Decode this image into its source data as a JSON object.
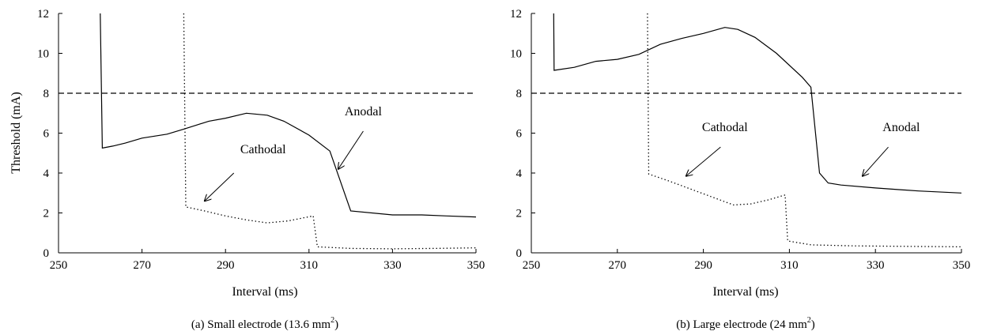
{
  "chart_data": [
    {
      "type": "line",
      "caption": "(a)  Small electrode (13.6 mm",
      "caption_sup": "2",
      "caption_end": ")",
      "xlabel": "Interval (ms)",
      "ylabel": "Threshold (mA)",
      "xlim": [
        250,
        350
      ],
      "ylim": [
        0,
        12
      ],
      "xticks": [
        250,
        270,
        290,
        310,
        330,
        350
      ],
      "yticks": [
        0,
        2,
        4,
        6,
        8,
        10,
        12
      ],
      "grid": false,
      "series": [
        {
          "name": "Anodal",
          "style": "solid",
          "x": [
            260,
            260.5,
            263,
            266,
            270,
            276,
            280,
            283,
            286,
            290,
            295,
            300,
            304,
            310,
            315,
            320,
            330,
            337,
            343,
            350
          ],
          "y": [
            12,
            5.25,
            5.35,
            5.5,
            5.75,
            5.95,
            6.2,
            6.4,
            6.6,
            6.75,
            7.0,
            6.9,
            6.6,
            5.9,
            5.1,
            2.1,
            1.9,
            1.9,
            1.85,
            1.8
          ]
        },
        {
          "name": "Cathodal",
          "style": "dotted",
          "x": [
            280,
            280.5,
            285,
            290,
            295,
            300,
            305,
            311,
            312,
            320,
            330,
            340,
            350
          ],
          "y": [
            12,
            2.3,
            2.1,
            1.85,
            1.65,
            1.5,
            1.6,
            1.85,
            0.3,
            0.22,
            0.2,
            0.22,
            0.25
          ]
        },
        {
          "name": "",
          "style": "dashed",
          "x": [
            250,
            350
          ],
          "y": [
            8,
            8
          ]
        }
      ],
      "annotations": [
        {
          "text": "Anodal",
          "x": 323,
          "y": 6.9,
          "arrow_from": [
            323,
            6.1
          ],
          "arrow_to": [
            317,
            4.2
          ]
        },
        {
          "text": "Cathodal",
          "x": 299,
          "y": 5.0,
          "arrow_from": [
            292,
            4.0
          ],
          "arrow_to": [
            285,
            2.6
          ]
        }
      ]
    },
    {
      "type": "line",
      "caption": "(b)  Large electrode (24 mm",
      "caption_sup": "2",
      "caption_end": ")",
      "xlabel": "Interval (ms)",
      "ylabel": "",
      "xlim": [
        250,
        350
      ],
      "ylim": [
        0,
        12
      ],
      "xticks": [
        250,
        270,
        290,
        310,
        330,
        350
      ],
      "yticks": [
        0,
        2,
        4,
        6,
        8,
        10,
        12
      ],
      "grid": false,
      "series": [
        {
          "name": "Anodal",
          "style": "solid",
          "x": [
            255.2,
            255.3,
            260,
            265,
            270,
            275,
            280,
            285,
            290,
            295,
            298,
            302,
            307,
            313,
            315,
            317,
            319,
            322,
            330,
            340,
            350
          ],
          "y": [
            12,
            9.15,
            9.3,
            9.6,
            9.7,
            9.95,
            10.45,
            10.75,
            11.0,
            11.3,
            11.2,
            10.8,
            10.0,
            8.8,
            8.3,
            4.0,
            3.5,
            3.4,
            3.25,
            3.1,
            3.0
          ]
        },
        {
          "name": "Cathodal",
          "style": "dotted",
          "x": [
            277,
            277.3,
            282,
            287,
            292,
            297,
            301,
            305,
            309,
            309.6,
            315,
            325,
            335,
            350
          ],
          "y": [
            12,
            3.95,
            3.6,
            3.2,
            2.8,
            2.4,
            2.45,
            2.65,
            2.9,
            0.6,
            0.4,
            0.35,
            0.33,
            0.3
          ]
        },
        {
          "name": "",
          "style": "dashed",
          "x": [
            250,
            350
          ],
          "y": [
            8,
            8
          ]
        }
      ],
      "annotations": [
        {
          "text": "Anodal",
          "x": 336,
          "y": 6.1,
          "arrow_from": [
            333,
            5.3
          ],
          "arrow_to": [
            327,
            3.85
          ]
        },
        {
          "text": "Cathodal",
          "x": 295,
          "y": 6.1,
          "arrow_from": [
            294,
            5.3
          ],
          "arrow_to": [
            286,
            3.85
          ]
        }
      ]
    }
  ]
}
